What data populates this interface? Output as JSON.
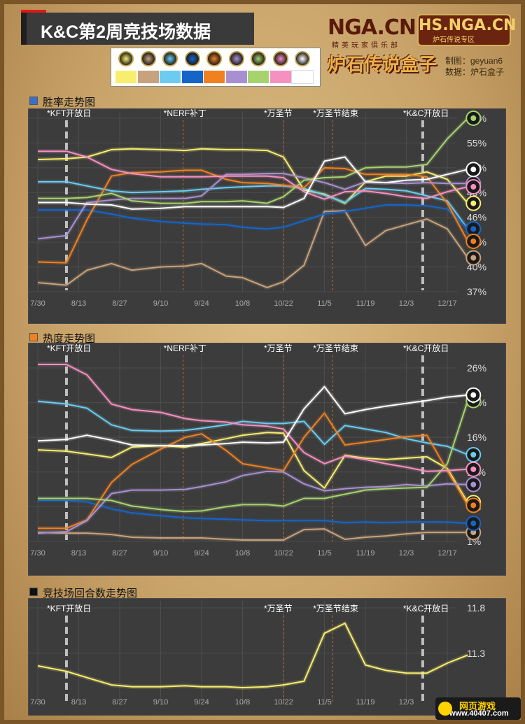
{
  "header": {
    "title": "K&C第2周竞技场数据",
    "logo_nga": "NGA.CN",
    "logo_nga_sub": "精英玩家俱乐部",
    "logo_hs": "HS.NGA.CN",
    "logo_hs_sub": "炉石传说专区",
    "logo_box": "炉石传说盒子",
    "producer": "制图：geyuan6",
    "source": "数据：炉石盒子"
  },
  "legend": [
    {
      "icon": "druid-icon",
      "color": "#f7ee6e"
    },
    {
      "icon": "hunter-icon",
      "color": "#c8a27c"
    },
    {
      "icon": "mage-icon",
      "color": "#6ccbf0"
    },
    {
      "icon": "paladin-icon",
      "color": "#1565c8"
    },
    {
      "icon": "priest-icon",
      "color": "#f08020"
    },
    {
      "icon": "rogue-icon",
      "color": "#a890d0"
    },
    {
      "icon": "shaman-icon",
      "color": "#a6d36e"
    },
    {
      "icon": "warlock-icon",
      "color": "#f590c0"
    },
    {
      "icon": "warrior-icon",
      "color": "#ffffff"
    }
  ],
  "x_labels": [
    "7/30",
    "8/13",
    "8/27",
    "9/10",
    "9/24",
    "10/8",
    "10/22",
    "11/5",
    "11/19",
    "12/3",
    "12/17"
  ],
  "chart_data": [
    {
      "type": "line",
      "title": "胜率走势图",
      "title_color": "#3a6fc8",
      "ylim": [
        37,
        58
      ],
      "ytick_labels": [
        "58%",
        "55%",
        "52%",
        "49%",
        "46%",
        "43%",
        "40%",
        "37%"
      ],
      "yticks": [
        58,
        55,
        52,
        49,
        46,
        43,
        40,
        37
      ],
      "events": [
        {
          "label": "*KFT开放日",
          "x": 0.7,
          "style": "bold"
        },
        {
          "label": "*NERF补丁",
          "x": 3.55,
          "style": "thin"
        },
        {
          "label": "*万圣节",
          "x": 6.0,
          "style": "thin"
        },
        {
          "label": "*万圣节结束",
          "x": 7.2,
          "style": "thin"
        },
        {
          "label": "*K&C开放日",
          "x": 9.4,
          "style": "bold"
        }
      ],
      "series": [
        {
          "color": "#f7ee6e",
          "x": [
            0,
            0.7,
            1.2,
            1.8,
            2.3,
            3,
            3.6,
            4,
            4.6,
            5,
            5.6,
            6,
            6.5,
            7,
            7.5,
            8,
            8.5,
            9,
            9.5,
            10,
            10.5
          ],
          "values": [
            53,
            53.1,
            53.3,
            54.2,
            54.3,
            54.2,
            54.1,
            54.3,
            54.2,
            54.2,
            54.1,
            53.3,
            49.3,
            48.8,
            47.7,
            50.3,
            51,
            51,
            51.5,
            50.6,
            47.7
          ]
        },
        {
          "color": "#c8a27c",
          "x": [
            0,
            0.7,
            1.2,
            1.8,
            2.3,
            3,
            3.6,
            4,
            4.6,
            5,
            5.6,
            6,
            6.5,
            7,
            7.5,
            8,
            8.5,
            9,
            9.5,
            10,
            10.5
          ],
          "values": [
            38.1,
            37.8,
            39.6,
            40.4,
            39.6,
            40,
            40.1,
            40.4,
            38.9,
            38.7,
            37.5,
            38.2,
            40.2,
            46.7,
            46.8,
            42.6,
            44.4,
            45.1,
            45.8,
            44.6,
            41.1
          ]
        },
        {
          "color": "#6ccbf0",
          "x": [
            0,
            0.7,
            1.2,
            1.8,
            2.3,
            3,
            3.6,
            4,
            4.6,
            5,
            5.6,
            6,
            6.5,
            7,
            7.5,
            8,
            8.5,
            9,
            9.5,
            10,
            10.5
          ],
          "values": [
            50.3,
            50.3,
            49.8,
            49.2,
            49,
            49.1,
            49.2,
            49.4,
            49.6,
            49.7,
            49.8,
            49.8,
            49.5,
            48.7,
            47.8,
            49.5,
            49.4,
            49.2,
            48.6,
            48,
            44.6
          ]
        },
        {
          "color": "#1565c8",
          "x": [
            0,
            0.7,
            1.2,
            1.8,
            2.3,
            3,
            3.6,
            4,
            4.6,
            5,
            5.6,
            6,
            6.5,
            7,
            7.5,
            8,
            8.5,
            9,
            9.5,
            10,
            10.5
          ],
          "values": [
            46.9,
            46.9,
            46.9,
            46.4,
            45.9,
            45.5,
            45.3,
            45.2,
            45.1,
            44.8,
            44.6,
            44.8,
            45.6,
            46.4,
            46.7,
            47.1,
            47.5,
            47.5,
            47.4,
            47,
            44.6
          ]
        },
        {
          "color": "#f08020",
          "x": [
            0,
            0.7,
            1.2,
            1.8,
            2.3,
            3,
            3.6,
            4,
            4.6,
            5,
            5.6,
            6,
            6.5,
            7,
            7.5,
            8,
            8.5,
            9,
            9.5,
            10,
            10.5
          ],
          "values": [
            40.6,
            40.5,
            45.7,
            51,
            51.4,
            51.5,
            51.7,
            51.7,
            50.6,
            50.2,
            50.1,
            49.9,
            49.6,
            52,
            51.9,
            51.2,
            51.2,
            51.2,
            50.9,
            47.7,
            43.1
          ]
        },
        {
          "color": "#a890d0",
          "x": [
            0,
            0.7,
            1.2,
            1.8,
            2.3,
            3,
            3.6,
            4,
            4.6,
            5,
            5.6,
            6,
            6.5,
            7,
            7.5,
            8,
            8.5,
            9,
            9.5,
            10,
            10.5
          ],
          "values": [
            43.4,
            43.8,
            47.8,
            48.1,
            48.3,
            48.3,
            48.3,
            48.6,
            51.2,
            51.2,
            51.3,
            51.3,
            50.8,
            50.2,
            49.4,
            50.3,
            50.2,
            50.1,
            50.2,
            50.1,
            50.1
          ]
        },
        {
          "color": "#a6d36e",
          "x": [
            0,
            0.7,
            1.2,
            1.8,
            2.3,
            3,
            3.6,
            4,
            4.6,
            5,
            5.6,
            6,
            6.5,
            7,
            7.5,
            8,
            8.5,
            9,
            9.5,
            10,
            10.5
          ],
          "values": [
            48.3,
            48.3,
            48.4,
            48.9,
            48,
            47.7,
            47.7,
            47.9,
            47.9,
            48,
            47.7,
            48.5,
            50.5,
            50.8,
            50.9,
            52,
            52.1,
            52.1,
            52.4,
            55.5,
            58
          ]
        },
        {
          "color": "#f590c0",
          "x": [
            0,
            0.7,
            1.2,
            1.8,
            2.3,
            3,
            3.6,
            4,
            4.6,
            5,
            5.6,
            6,
            6.5,
            7,
            7.5,
            8,
            8.5,
            9,
            9.5,
            10,
            10.5
          ],
          "values": [
            54,
            54,
            53.3,
            51.8,
            51.3,
            50.9,
            50.9,
            50.9,
            51,
            51,
            51,
            50.8,
            49.1,
            48.2,
            49.1,
            49.2,
            48.9,
            48.5,
            48.3,
            49.1,
            49.7
          ]
        },
        {
          "color": "#ffffff",
          "x": [
            0,
            0.7,
            1.2,
            1.8,
            2.3,
            3,
            3.6,
            4,
            4.6,
            5,
            5.6,
            6,
            6.5,
            7,
            7.5,
            8,
            8.5,
            9,
            9.5,
            10,
            10.5
          ],
          "values": [
            47.8,
            47.8,
            47.6,
            47.5,
            47,
            47.1,
            47.3,
            47.3,
            47.3,
            47.3,
            47.3,
            47.2,
            48.3,
            52.8,
            53.3,
            50.3,
            50.2,
            50.5,
            50.6,
            51.2,
            51.8
          ]
        }
      ]
    },
    {
      "type": "line",
      "title": "热度走势图",
      "title_color": "#f08020",
      "ylim": [
        1,
        26
      ],
      "ytick_labels": [
        "26%",
        "21%",
        "16%",
        "11%",
        "6%",
        "1%"
      ],
      "yticks": [
        26,
        21,
        16,
        11,
        6,
        1
      ],
      "events": [
        {
          "label": "*KFT开放日",
          "x": 0.7,
          "style": "bold"
        },
        {
          "label": "*NERF补丁",
          "x": 3.55,
          "style": "thin"
        },
        {
          "label": "*万圣节",
          "x": 6.0,
          "style": "thin"
        },
        {
          "label": "*万圣节结束",
          "x": 7.2,
          "style": "thin"
        },
        {
          "label": "*K&C开放日",
          "x": 9.4,
          "style": "bold"
        }
      ],
      "series": [
        {
          "color": "#f7ee6e",
          "x": [
            0,
            0.7,
            1.2,
            1.8,
            2.3,
            3,
            3.6,
            4,
            4.6,
            5,
            5.6,
            6,
            6.5,
            7,
            7.5,
            8,
            8.5,
            9,
            9.5,
            10,
            10.5
          ],
          "values": [
            14.2,
            14,
            13.6,
            13.1,
            14.6,
            14.8,
            14.6,
            15.1,
            15.8,
            16.3,
            16.7,
            16.6,
            11.2,
            8.7,
            13.4,
            13,
            12.8,
            13,
            13.2,
            11.5,
            6.6
          ]
        },
        {
          "color": "#c8a27c",
          "x": [
            0,
            0.7,
            1.2,
            1.8,
            2.3,
            3,
            3.6,
            4,
            4.6,
            5,
            5.6,
            6,
            6.5,
            7,
            7.5,
            8,
            8.5,
            9,
            9.5,
            10,
            10.5
          ],
          "values": [
            2.3,
            2.2,
            2.2,
            2,
            1.6,
            1.5,
            1.5,
            1.5,
            1.3,
            1.2,
            1.2,
            1.2,
            2.7,
            2.8,
            1.3,
            1.6,
            1.8,
            2.1,
            2.3,
            2.3,
            2.3
          ]
        },
        {
          "color": "#6ccbf0",
          "x": [
            0,
            0.7,
            1.2,
            1.8,
            2.3,
            3,
            3.6,
            4,
            4.6,
            5,
            5.6,
            6,
            6.5,
            7,
            7.5,
            8,
            8.5,
            9,
            9.5,
            10,
            10.5
          ],
          "values": [
            21.2,
            20.8,
            20.2,
            17.8,
            17,
            16.9,
            17,
            17.3,
            17.8,
            18.3,
            18,
            18,
            18.3,
            15,
            17.7,
            17.2,
            16.7,
            15.8,
            15.2,
            14.7,
            13.5
          ]
        },
        {
          "color": "#1565c8",
          "x": [
            0,
            0.7,
            1.2,
            1.8,
            2.3,
            3,
            3.6,
            4,
            4.6,
            5,
            5.6,
            6,
            6.5,
            7,
            7.5,
            8,
            8.5,
            9,
            9.5,
            10,
            10.5
          ],
          "values": [
            6.9,
            6.9,
            6.7,
            5.7,
            5.1,
            4.7,
            4.4,
            4.3,
            4.2,
            4.1,
            4,
            4,
            4,
            4,
            3.7,
            3.8,
            3.7,
            3.8,
            3.8,
            3.8,
            3.6
          ]
        },
        {
          "color": "#f08020",
          "x": [
            0,
            0.7,
            1.2,
            1.8,
            2.3,
            3,
            3.6,
            4,
            4.6,
            5,
            5.6,
            6,
            6.5,
            7,
            7.5,
            8,
            8.5,
            9,
            9.5,
            10,
            10.5
          ],
          "values": [
            2.9,
            2.9,
            4.1,
            9.5,
            12.1,
            14.3,
            16,
            16.5,
            14.1,
            12.2,
            11.6,
            11.2,
            16,
            19.5,
            14.9,
            15.3,
            15.7,
            16.1,
            16.3,
            11.2,
            6.2
          ]
        },
        {
          "color": "#a890d0",
          "x": [
            0,
            0.7,
            1.2,
            1.8,
            2.3,
            3,
            3.6,
            4,
            4.6,
            5,
            5.6,
            6,
            6.5,
            7,
            7.5,
            8,
            8.5,
            9,
            9.5,
            10,
            10.5
          ],
          "values": [
            2.2,
            2.4,
            4,
            7.9,
            8.4,
            8.4,
            8.5,
            8.9,
            9.6,
            10.5,
            11.1,
            11,
            9.3,
            8.3,
            8.6,
            8.8,
            8.9,
            9.2,
            9,
            9.3,
            9.2
          ]
        },
        {
          "color": "#a6d36e",
          "x": [
            0,
            0.7,
            1.2,
            1.8,
            2.3,
            3,
            3.6,
            4,
            4.6,
            5,
            5.6,
            6,
            6.5,
            7,
            7.5,
            8,
            8.5,
            9,
            9.5,
            10,
            10.5
          ],
          "values": [
            7.2,
            7.2,
            7.2,
            6.9,
            6.1,
            5.6,
            5.3,
            5.4,
            6,
            6.3,
            6.3,
            6.1,
            7.2,
            7.2,
            7.8,
            8.4,
            8.6,
            8.7,
            8.8,
            12.2,
            21.3
          ]
        },
        {
          "color": "#f590c0",
          "x": [
            0,
            0.7,
            1.2,
            1.8,
            2.3,
            3,
            3.6,
            4,
            4.6,
            5,
            5.6,
            6,
            6.5,
            7,
            7.5,
            8,
            8.5,
            9,
            9.5,
            10,
            10.5
          ],
          "values": [
            26.5,
            26.5,
            25,
            20.8,
            20,
            19.6,
            18.7,
            18.4,
            18.2,
            17.8,
            17.6,
            17.2,
            13.8,
            12.2,
            13.3,
            12.8,
            12.2,
            11.7,
            11.1,
            11.2,
            11.4
          ]
        },
        {
          "color": "#ffffff",
          "x": [
            0,
            0.7,
            1.2,
            1.8,
            2.3,
            3,
            3.6,
            4,
            4.6,
            5,
            5.6,
            6,
            6.5,
            7,
            7.5,
            8,
            8.5,
            9,
            9.5,
            10,
            10.5
          ],
          "values": [
            15.5,
            15.7,
            16.3,
            15.6,
            14.9,
            14.8,
            14.8,
            14.9,
            15.1,
            15.3,
            15.2,
            15.3,
            20.1,
            23.3,
            19.4,
            20,
            20.5,
            20.9,
            21.3,
            21.8,
            22.1
          ]
        }
      ]
    },
    {
      "type": "line",
      "title": "竞技场回合数走势图",
      "title_color": "#111111",
      "ylim": [
        10.75,
        11.8
      ],
      "ytick_labels": [
        "11.8",
        "11.3"
      ],
      "yticks": [
        11.8,
        11.3
      ],
      "events": [
        {
          "label": "*KFT开放日",
          "x": 0.7,
          "style": "bold"
        },
        {
          "label": "*万圣节",
          "x": 6.0,
          "style": "thin"
        },
        {
          "label": "*万圣节结束",
          "x": 7.2,
          "style": "thin"
        },
        {
          "label": "*K&C开放日",
          "x": 9.4,
          "style": "bold"
        }
      ],
      "series": [
        {
          "color": "#f7ee6e",
          "x": [
            0,
            0.7,
            1.2,
            1.8,
            2.3,
            3,
            3.6,
            4,
            4.6,
            5,
            5.6,
            6,
            6.5,
            7,
            7.5,
            8,
            8.5,
            9,
            9.5,
            10,
            10.5
          ],
          "values": [
            11.16,
            11.1,
            11.03,
            10.95,
            10.93,
            10.93,
            10.94,
            10.93,
            10.93,
            10.92,
            10.93,
            10.95,
            10.99,
            11.52,
            11.63,
            11.17,
            11.11,
            11.08,
            11.08,
            11.19,
            11.28
          ]
        }
      ]
    }
  ],
  "badge": {
    "top": "网页游戏",
    "bottom": "www.40407.com"
  }
}
